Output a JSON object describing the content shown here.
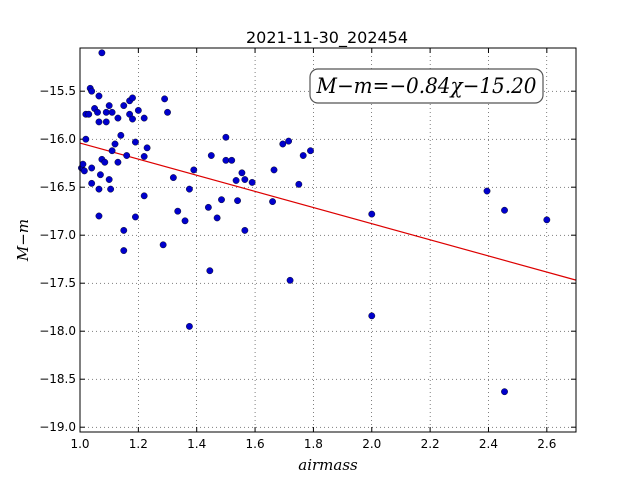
{
  "chart_data": {
    "type": "scatter",
    "title": "2021-11-30_202454",
    "xlabel": "airmass",
    "ylabel": "M−m",
    "xlim": [
      1.0,
      2.7
    ],
    "ylim": [
      -19.05,
      -15.05
    ],
    "y_inverted": true,
    "grid": true,
    "x_ticks": [
      1.0,
      1.2,
      1.4,
      1.6,
      1.8,
      2.0,
      2.2,
      2.4,
      2.6
    ],
    "x_tick_labels": [
      "1.0",
      "1.2",
      "1.4",
      "1.6",
      "1.8",
      "2.0",
      "2.2",
      "2.4",
      "2.6"
    ],
    "y_ticks": [
      -15.5,
      -16.0,
      -16.5,
      -17.0,
      -17.5,
      -18.0,
      -18.5,
      -19.0
    ],
    "y_tick_labels": [
      "−15.5",
      "−16.0",
      "−16.5",
      "−17.0",
      "−17.5",
      "−18.0",
      "−18.5",
      "−19.0"
    ],
    "annotation": "M−m=−0.84χ−15.20",
    "point_color": "#0000cc",
    "fit_color": "#dd0000",
    "fit": {
      "slope": -0.84,
      "intercept": -15.2
    },
    "points": [
      [
        1.075,
        -15.1
      ],
      [
        1.035,
        -15.47
      ],
      [
        1.04,
        -15.5
      ],
      [
        1.065,
        -15.55
      ],
      [
        1.09,
        -15.72
      ],
      [
        1.1,
        -15.65
      ],
      [
        1.05,
        -15.68
      ],
      [
        1.06,
        -15.72
      ],
      [
        1.02,
        -15.74
      ],
      [
        1.03,
        -15.74
      ],
      [
        1.065,
        -15.82
      ],
      [
        1.09,
        -15.82
      ],
      [
        1.11,
        -15.72
      ],
      [
        1.13,
        -15.78
      ],
      [
        1.15,
        -15.65
      ],
      [
        1.17,
        -15.6
      ],
      [
        1.18,
        -15.57
      ],
      [
        1.17,
        -15.74
      ],
      [
        1.18,
        -15.79
      ],
      [
        1.2,
        -15.7
      ],
      [
        1.22,
        -15.78
      ],
      [
        1.14,
        -15.96
      ],
      [
        1.02,
        -16.0
      ],
      [
        1.12,
        -16.05
      ],
      [
        1.19,
        -16.03
      ],
      [
        1.23,
        -16.09
      ],
      [
        1.11,
        -16.12
      ],
      [
        1.16,
        -16.17
      ],
      [
        1.22,
        -16.18
      ],
      [
        1.13,
        -16.24
      ],
      [
        1.075,
        -16.21
      ],
      [
        1.085,
        -16.24
      ],
      [
        1.005,
        -16.3
      ],
      [
        1.01,
        -16.26
      ],
      [
        1.015,
        -16.33
      ],
      [
        1.04,
        -16.3
      ],
      [
        1.07,
        -16.37
      ],
      [
        1.1,
        -16.42
      ],
      [
        1.04,
        -16.46
      ],
      [
        1.065,
        -16.52
      ],
      [
        1.105,
        -16.52
      ],
      [
        1.22,
        -16.59
      ],
      [
        1.065,
        -16.8
      ],
      [
        1.19,
        -16.81
      ],
      [
        1.15,
        -16.95
      ],
      [
        1.15,
        -17.16
      ],
      [
        1.29,
        -15.58
      ],
      [
        1.3,
        -15.72
      ],
      [
        1.32,
        -16.4
      ],
      [
        1.39,
        -16.32
      ],
      [
        1.375,
        -16.52
      ],
      [
        1.335,
        -16.75
      ],
      [
        1.36,
        -16.85
      ],
      [
        1.285,
        -17.1
      ],
      [
        1.45,
        -16.17
      ],
      [
        1.44,
        -16.71
      ],
      [
        1.47,
        -16.82
      ],
      [
        1.485,
        -16.63
      ],
      [
        1.5,
        -16.22
      ],
      [
        1.5,
        -15.98
      ],
      [
        1.52,
        -16.22
      ],
      [
        1.535,
        -16.43
      ],
      [
        1.555,
        -16.35
      ],
      [
        1.565,
        -16.42
      ],
      [
        1.59,
        -16.45
      ],
      [
        1.54,
        -16.64
      ],
      [
        1.565,
        -16.95
      ],
      [
        1.445,
        -17.37
      ],
      [
        1.375,
        -17.95
      ],
      [
        1.665,
        -16.32
      ],
      [
        1.695,
        -16.05
      ],
      [
        1.715,
        -16.02
      ],
      [
        1.66,
        -16.65
      ],
      [
        1.75,
        -16.47
      ],
      [
        1.765,
        -16.17
      ],
      [
        1.79,
        -16.12
      ],
      [
        1.72,
        -17.47
      ],
      [
        2.0,
        -16.78
      ],
      [
        2.0,
        -17.84
      ],
      [
        2.395,
        -16.54
      ],
      [
        2.455,
        -16.74
      ],
      [
        2.6,
        -16.84
      ],
      [
        2.455,
        -18.63
      ]
    ]
  }
}
